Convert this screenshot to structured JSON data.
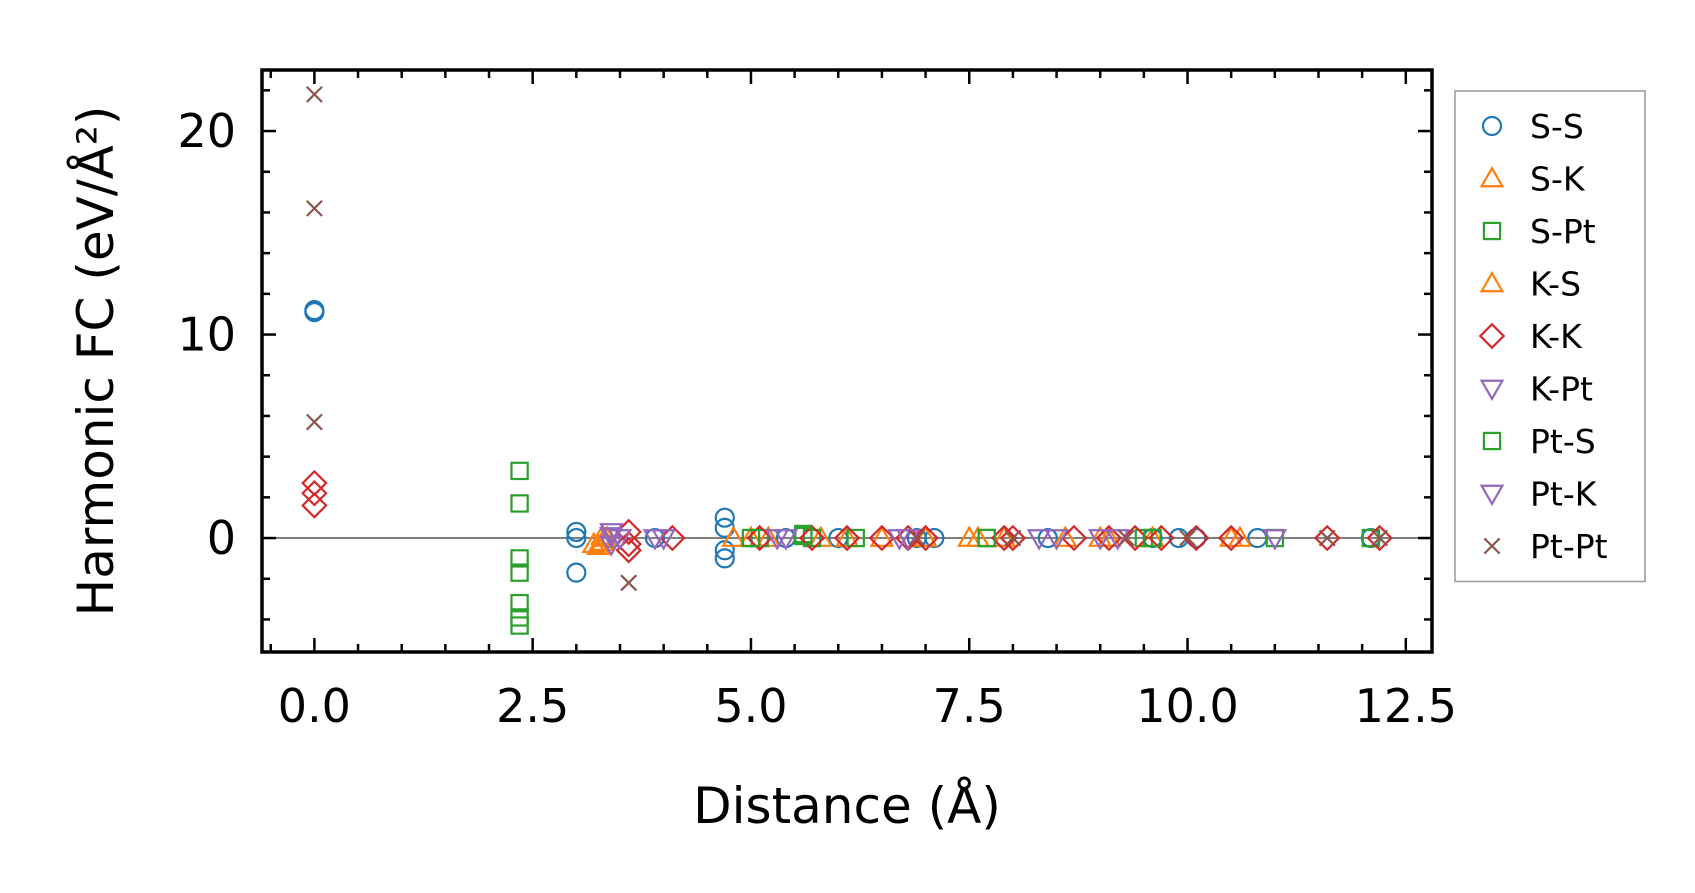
{
  "chart_data": {
    "type": "scatter",
    "xlabel": "Distance (Å)",
    "ylabel": "Harmonic FC (eV/Å²)",
    "xlim": [
      -0.6,
      12.8
    ],
    "ylim": [
      -5.6,
      23.0
    ],
    "x_ticks": [
      0.0,
      2.5,
      5.0,
      7.5,
      10.0,
      12.5
    ],
    "x_tick_labels": [
      "0.0",
      "2.5",
      "5.0",
      "7.5",
      "10.0",
      "12.5"
    ],
    "y_ticks": [
      0,
      10,
      20
    ],
    "y_tick_labels": [
      "0",
      "10",
      "20"
    ],
    "zero_line": true,
    "grid": false,
    "legend_position": "right, outside",
    "series": [
      {
        "name": "S-S",
        "marker": "circle",
        "color": "#1f77b4",
        "points": [
          [
            0,
            11.1
          ],
          [
            0,
            11.2
          ],
          [
            3.0,
            0.3
          ],
          [
            3.0,
            0.0
          ],
          [
            3.0,
            -1.7
          ],
          [
            3.4,
            0.0
          ],
          [
            3.9,
            0.0
          ],
          [
            4.7,
            1.0
          ],
          [
            4.7,
            0.5
          ],
          [
            4.7,
            -0.6
          ],
          [
            4.7,
            -1.0
          ],
          [
            5.1,
            0.0
          ],
          [
            5.4,
            0.0
          ],
          [
            6.0,
            0.0
          ],
          [
            6.9,
            0.0
          ],
          [
            7.1,
            0.0
          ],
          [
            8.4,
            0.0
          ],
          [
            9.6,
            0.0
          ],
          [
            9.9,
            0.0
          ],
          [
            10.1,
            0.0
          ],
          [
            10.8,
            0.0
          ],
          [
            12.1,
            0.0
          ]
        ]
      },
      {
        "name": "S-K",
        "marker": "triangle-up",
        "color": "#ff7f0e",
        "points": [
          [
            3.2,
            -0.3
          ],
          [
            3.3,
            0.1
          ],
          [
            3.3,
            -0.2
          ],
          [
            4.8,
            0.0
          ],
          [
            5.2,
            0.0
          ],
          [
            5.8,
            0.0
          ],
          [
            6.1,
            0.0
          ],
          [
            7.0,
            0.0
          ],
          [
            7.5,
            0.0
          ],
          [
            7.9,
            0.0
          ],
          [
            8.6,
            0.0
          ],
          [
            9.0,
            0.0
          ],
          [
            9.6,
            0.0
          ],
          [
            10.6,
            0.0
          ]
        ]
      },
      {
        "name": "S-Pt",
        "marker": "square",
        "color": "#2ca02c",
        "points": [
          [
            2.35,
            3.3
          ],
          [
            2.35,
            1.7
          ],
          [
            2.35,
            -1.0
          ],
          [
            2.35,
            -1.7
          ],
          [
            2.35,
            -3.2
          ],
          [
            2.35,
            -3.9
          ],
          [
            2.35,
            -4.3
          ],
          [
            5.1,
            0.0
          ],
          [
            5.6,
            0.2
          ],
          [
            5.7,
            0.0
          ],
          [
            6.2,
            0.0
          ],
          [
            7.7,
            0.0
          ],
          [
            9.5,
            0.0
          ],
          [
            11.0,
            0.0
          ],
          [
            12.1,
            0.0
          ]
        ]
      },
      {
        "name": "K-S",
        "marker": "triangle-up",
        "color": "#ff7f0e",
        "points": [
          [
            3.25,
            -0.4
          ],
          [
            3.35,
            0.0
          ],
          [
            5.0,
            0.0
          ],
          [
            6.5,
            0.0
          ],
          [
            7.6,
            0.0
          ],
          [
            9.1,
            0.0
          ],
          [
            10.5,
            0.0
          ]
        ]
      },
      {
        "name": "K-K",
        "marker": "diamond",
        "color": "#d62728",
        "points": [
          [
            0,
            2.7
          ],
          [
            0,
            2.2
          ],
          [
            0,
            1.6
          ],
          [
            3.6,
            0.3
          ],
          [
            3.6,
            -0.3
          ],
          [
            3.6,
            -0.6
          ],
          [
            4.1,
            0.0
          ],
          [
            5.1,
            0.0
          ],
          [
            5.7,
            0.0
          ],
          [
            6.1,
            0.0
          ],
          [
            6.5,
            0.0
          ],
          [
            6.8,
            0.0
          ],
          [
            7.0,
            0.0
          ],
          [
            7.9,
            0.0
          ],
          [
            8.0,
            0.0
          ],
          [
            8.7,
            0.0
          ],
          [
            9.1,
            0.0
          ],
          [
            9.4,
            0.0
          ],
          [
            9.7,
            0.0
          ],
          [
            10.1,
            0.0
          ],
          [
            10.5,
            0.0
          ],
          [
            11.6,
            0.0
          ],
          [
            12.2,
            0.0
          ]
        ]
      },
      {
        "name": "K-Pt",
        "marker": "triangle-down",
        "color": "#9467bd",
        "points": [
          [
            3.4,
            0.1
          ],
          [
            3.4,
            -0.3
          ],
          [
            3.9,
            0.0
          ],
          [
            5.3,
            0.0
          ],
          [
            6.8,
            0.0
          ],
          [
            8.3,
            0.0
          ],
          [
            9.0,
            0.0
          ],
          [
            11.0,
            0.0
          ]
        ]
      },
      {
        "name": "Pt-S",
        "marker": "square",
        "color": "#2ca02c",
        "points": [
          [
            5.0,
            0.0
          ],
          [
            5.6,
            0.1
          ],
          [
            7.7,
            0.0
          ],
          [
            9.6,
            0.0
          ]
        ]
      },
      {
        "name": "Pt-K",
        "marker": "triangle-down",
        "color": "#9467bd",
        "points": [
          [
            3.4,
            0.3
          ],
          [
            3.5,
            0.0
          ],
          [
            4.0,
            0.0
          ],
          [
            5.4,
            0.0
          ],
          [
            6.7,
            0.0
          ],
          [
            8.5,
            0.0
          ],
          [
            9.2,
            0.0
          ]
        ]
      },
      {
        "name": "Pt-Pt",
        "marker": "x",
        "color": "#8c564b",
        "points": [
          [
            0,
            21.8
          ],
          [
            0,
            16.2
          ],
          [
            0,
            5.7
          ],
          [
            3.6,
            -2.2
          ],
          [
            6.9,
            0.0
          ],
          [
            8.0,
            0.0
          ],
          [
            9.3,
            0.0
          ],
          [
            10.0,
            0.0
          ],
          [
            11.6,
            0.0
          ],
          [
            12.2,
            0.0
          ]
        ]
      }
    ]
  }
}
